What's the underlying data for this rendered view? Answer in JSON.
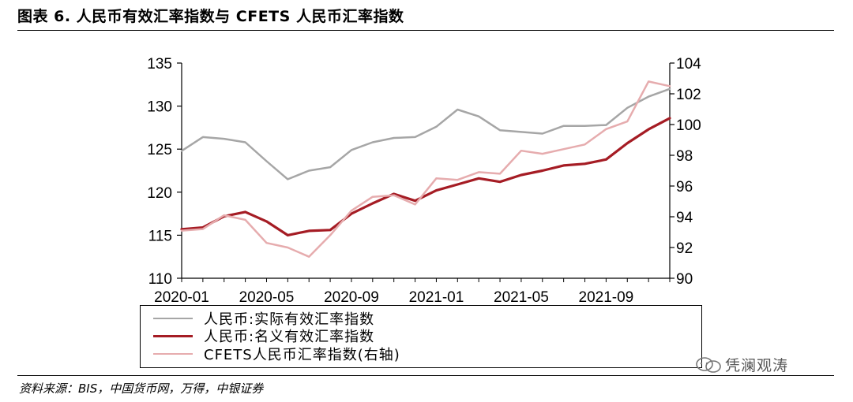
{
  "title": "图表 6. 人民币有效汇率指数与 CFETS 人民币汇率指数",
  "source": "资料来源：BIS，中国货币网，万得，中银证券",
  "watermark": "凭澜观涛",
  "colors": {
    "reer": "#a6a6a6",
    "neer": "#a51c24",
    "cfets": "#e6acae"
  },
  "chart_data": {
    "type": "line",
    "x": [
      "2020-01",
      "2020-02",
      "2020-03",
      "2020-04",
      "2020-05",
      "2020-06",
      "2020-07",
      "2020-08",
      "2020-09",
      "2020-10",
      "2020-11",
      "2020-12",
      "2021-01",
      "2021-02",
      "2021-03",
      "2021-04",
      "2021-05",
      "2021-06",
      "2021-07",
      "2021-08",
      "2021-09",
      "2021-10",
      "2021-11",
      "2021-12"
    ],
    "x_tick_labels": [
      "2020-01",
      "2020-05",
      "2020-09",
      "2021-01",
      "2021-05",
      "2021-09"
    ],
    "y_left": {
      "min": 110,
      "max": 135,
      "ticks": [
        110,
        115,
        120,
        125,
        130,
        135
      ]
    },
    "y_right": {
      "min": 90,
      "max": 104,
      "ticks": [
        90,
        92,
        94,
        96,
        98,
        100,
        102,
        104
      ]
    },
    "series": [
      {
        "name": "人民币:实际有效汇率指数",
        "axis": "left",
        "values": [
          124.8,
          126.4,
          126.2,
          125.8,
          123.6,
          121.5,
          122.5,
          122.9,
          124.9,
          125.8,
          126.3,
          126.4,
          127.6,
          129.6,
          128.8,
          127.2,
          127.0,
          126.8,
          127.7,
          127.7,
          127.8,
          129.8,
          131.1,
          132.0
        ]
      },
      {
        "name": "人民币:名义有效汇率指数",
        "axis": "left",
        "values": [
          115.7,
          115.9,
          117.2,
          117.7,
          116.6,
          115.0,
          115.5,
          115.6,
          117.5,
          118.7,
          119.8,
          119.0,
          120.2,
          120.9,
          121.6,
          121.2,
          122.0,
          122.5,
          123.1,
          123.3,
          123.8,
          125.7,
          127.3,
          128.6
        ]
      },
      {
        "name": "CFETS人民币汇率指数(右轴)",
        "axis": "right",
        "values": [
          93.1,
          93.2,
          94.1,
          93.8,
          92.3,
          92.0,
          91.4,
          92.8,
          94.4,
          95.3,
          95.4,
          94.8,
          96.5,
          96.4,
          96.9,
          96.8,
          98.3,
          98.1,
          98.4,
          98.7,
          99.7,
          100.2,
          102.8,
          102.5
        ]
      }
    ]
  }
}
